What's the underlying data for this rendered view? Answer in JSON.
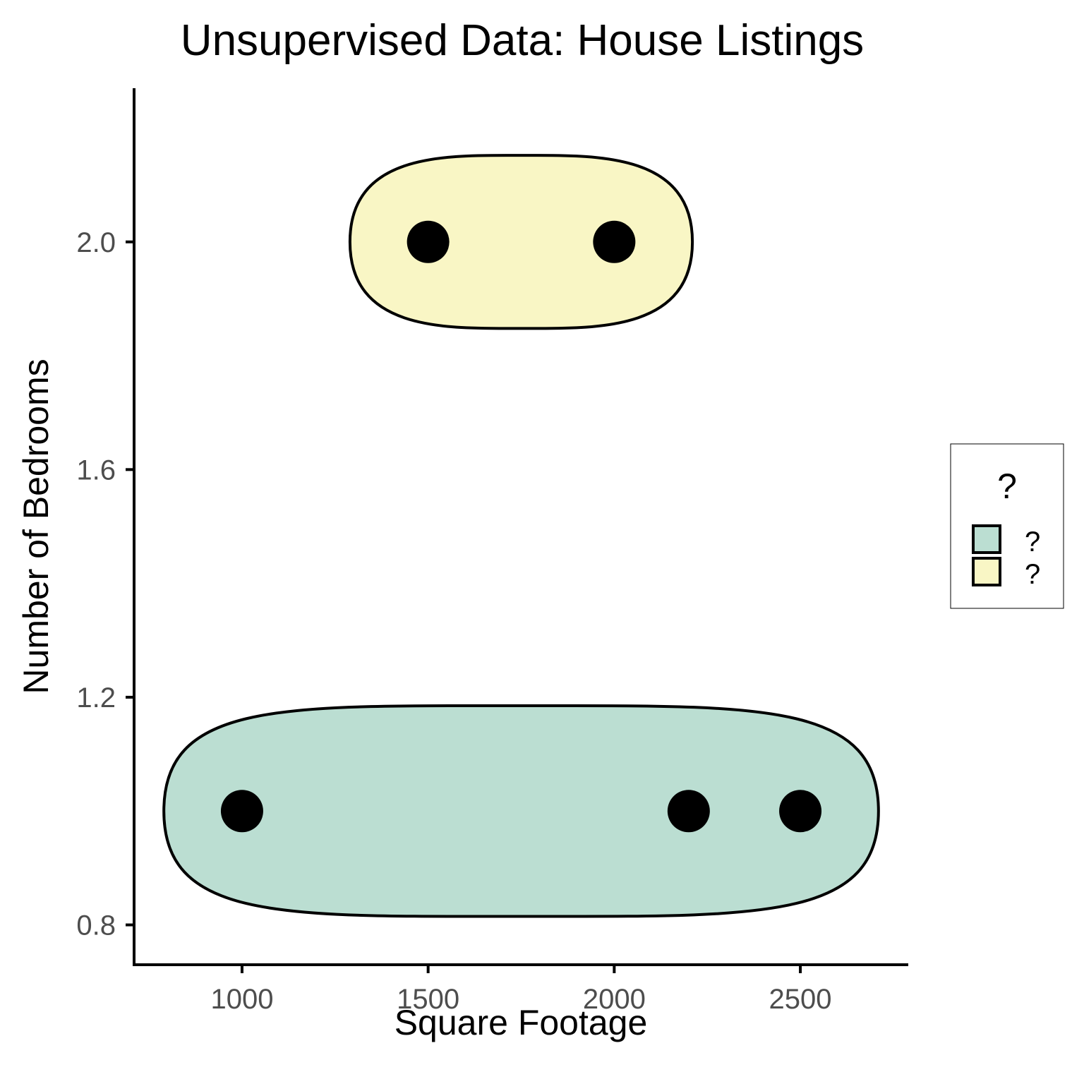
{
  "chart_data": {
    "type": "scatter",
    "title": "Unsupervised Data: House Listings",
    "xlabel": "Square Footage",
    "ylabel": "Number of Bedrooms",
    "xlim": [
      710,
      2790
    ],
    "ylim": [
      0.73,
      2.27
    ],
    "x_ticks": [
      1000,
      1500,
      2000,
      2500
    ],
    "x_tick_labels": [
      "1000",
      "1500",
      "2000",
      "2500"
    ],
    "y_ticks": [
      0.8,
      1.2,
      1.6,
      2.0
    ],
    "y_tick_labels": [
      "0.8",
      "1.2",
      "1.6",
      "2.0"
    ],
    "grid": false,
    "points": [
      {
        "x": 1000,
        "y": 1,
        "group": 0
      },
      {
        "x": 2200,
        "y": 1,
        "group": 0
      },
      {
        "x": 2500,
        "y": 1,
        "group": 0
      },
      {
        "x": 1500,
        "y": 2,
        "group": 1
      },
      {
        "x": 2000,
        "y": 2,
        "group": 1
      }
    ],
    "groups": [
      {
        "label": "?",
        "fill": "#bbded2",
        "x_range": [
          790,
          2710
        ],
        "y_center": 1.0,
        "y_half_height": 0.185
      },
      {
        "label": "?",
        "fill": "#f9f6c5",
        "x_range": [
          1290,
          2210
        ],
        "y_center": 2.0,
        "y_half_height": 0.152
      }
    ],
    "legend": {
      "title": "?",
      "position": "right",
      "entries": [
        "?",
        "?"
      ]
    },
    "colors": {
      "point": "#000000",
      "outline": "#000000"
    }
  }
}
